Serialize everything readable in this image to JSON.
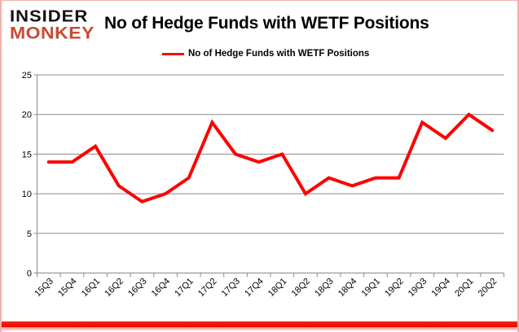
{
  "logo": {
    "line1": "INSIDER",
    "line2": "MONKEY"
  },
  "header": {
    "title": "No of Hedge Funds with WETF Positions"
  },
  "legend": {
    "label": "No of Hedge Funds with WETF Positions"
  },
  "colors": {
    "series_line": "#fe0000",
    "logo_accent": "#c94b32",
    "grid": "#8a8a8a",
    "axis": "#8a8a8a",
    "text": "#000000",
    "frame_border": "#f0b2aa",
    "bottom_bar": "#fe0000"
  },
  "chart_data": {
    "type": "line",
    "title": "No of Hedge Funds with WETF Positions",
    "categories": [
      "15Q3",
      "15Q4",
      "16Q1",
      "16Q2",
      "16Q3",
      "16Q4",
      "17Q1",
      "17Q2",
      "17Q3",
      "17Q4",
      "18Q1",
      "18Q2",
      "18Q3",
      "18Q4",
      "19Q1",
      "19Q2",
      "19Q3",
      "19Q4",
      "20Q1",
      "20Q2"
    ],
    "series": [
      {
        "name": "No of Hedge Funds with WETF Positions",
        "color": "#fe0000",
        "values": [
          14,
          14,
          16,
          11,
          9,
          10,
          12,
          19,
          15,
          14,
          15,
          10,
          12,
          11,
          12,
          12,
          19,
          17,
          20,
          18
        ]
      }
    ],
    "xlabel": "",
    "ylabel": "",
    "ylim": [
      0,
      25
    ],
    "yticks": [
      0,
      5,
      10,
      15,
      20,
      25
    ],
    "grid": true,
    "legend_position": "top-center"
  }
}
